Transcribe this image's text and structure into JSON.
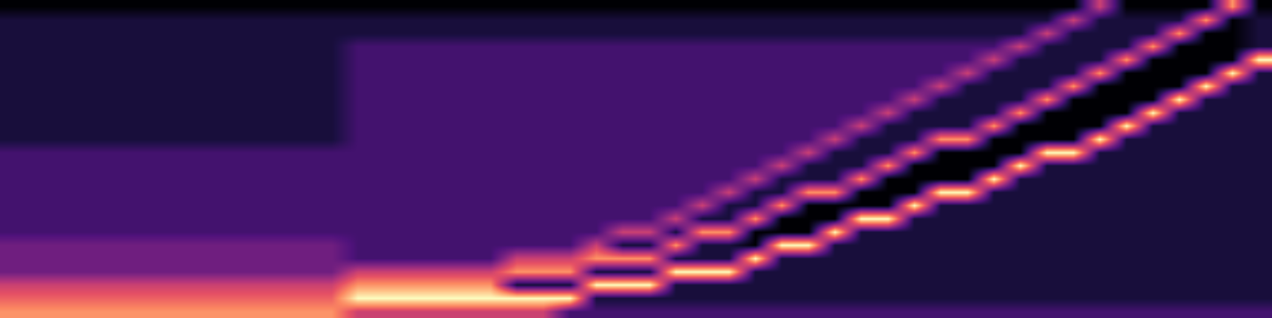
{
  "chart_data": {
    "type": "heatmap",
    "tick_labels": false,
    "grid": false,
    "cells": [
      [
        8,
        8,
        8,
        8,
        8,
        8,
        8,
        8,
        8,
        8,
        8,
        8,
        8,
        6,
        6,
        6,
        6,
        6,
        6,
        6,
        6,
        3,
        3,
        3,
        3,
        3,
        3,
        3,
        3,
        3,
        3,
        3,
        3,
        3,
        3,
        3,
        3,
        3,
        3,
        3,
        3,
        3,
        3,
        3,
        3,
        3,
        3,
        3
      ],
      [
        7,
        7,
        7,
        7,
        7,
        7,
        7,
        7,
        7,
        7,
        7,
        7,
        7,
        10,
        10,
        10,
        10,
        10,
        10,
        10,
        10,
        10,
        2,
        2,
        2,
        2,
        2,
        2,
        2,
        2,
        2,
        2,
        2,
        2,
        2,
        2,
        2,
        2,
        2,
        2,
        2,
        2,
        2,
        2,
        2,
        2,
        2,
        2
      ],
      [
        6,
        6,
        6,
        6,
        6,
        6,
        6,
        6,
        6,
        6,
        6,
        6,
        6,
        8,
        8,
        8,
        8,
        8,
        8,
        2,
        2,
        2,
        10,
        10,
        10,
        2,
        2,
        2,
        2,
        2,
        2,
        2,
        2,
        2,
        2,
        2,
        2,
        2,
        2,
        2,
        2,
        2,
        2,
        2,
        2,
        2,
        2,
        2
      ],
      [
        4,
        4,
        4,
        4,
        4,
        4,
        4,
        4,
        4,
        4,
        4,
        4,
        4,
        6,
        6,
        6,
        6,
        6,
        6,
        8,
        8,
        8,
        2,
        2,
        2,
        10,
        10,
        10,
        2,
        2,
        2,
        2,
        2,
        2,
        2,
        2,
        2,
        2,
        2,
        2,
        2,
        2,
        2,
        2,
        2,
        2,
        2,
        2
      ],
      [
        4,
        4,
        4,
        4,
        4,
        4,
        4,
        4,
        4,
        4,
        4,
        4,
        4,
        3,
        3,
        3,
        3,
        3,
        3,
        6,
        6,
        6,
        8,
        8,
        8,
        2,
        2,
        2,
        10,
        2,
        2,
        2,
        2,
        2,
        2,
        2,
        2,
        2,
        2,
        2,
        2,
        2,
        2,
        2,
        2,
        2,
        2,
        2
      ],
      [
        4,
        4,
        4,
        4,
        4,
        4,
        4,
        4,
        4,
        4,
        4,
        4,
        4,
        3,
        3,
        3,
        3,
        3,
        3,
        3,
        3,
        3,
        6,
        2,
        2,
        8,
        2,
        2,
        1,
        10,
        10,
        2,
        2,
        2,
        2,
        2,
        2,
        2,
        2,
        2,
        2,
        2,
        2,
        2,
        2,
        2,
        2,
        2
      ],
      [
        3,
        3,
        3,
        3,
        3,
        3,
        3,
        3,
        3,
        3,
        3,
        3,
        3,
        3,
        3,
        3,
        3,
        3,
        3,
        3,
        3,
        3,
        3,
        6,
        6,
        2,
        8,
        8,
        1,
        1,
        1,
        10,
        2,
        2,
        2,
        2,
        2,
        2,
        2,
        2,
        2,
        2,
        2,
        2,
        2,
        2,
        2,
        2
      ],
      [
        3,
        3,
        3,
        3,
        3,
        3,
        3,
        3,
        3,
        3,
        3,
        3,
        3,
        3,
        3,
        3,
        3,
        3,
        3,
        3,
        3,
        3,
        3,
        3,
        3,
        6,
        2,
        2,
        8,
        1,
        1,
        1,
        10,
        10,
        2,
        2,
        2,
        2,
        2,
        2,
        2,
        2,
        2,
        2,
        2,
        2,
        2,
        2
      ],
      [
        3,
        3,
        3,
        3,
        3,
        3,
        3,
        3,
        3,
        3,
        3,
        3,
        3,
        3,
        3,
        3,
        3,
        3,
        3,
        3,
        3,
        3,
        3,
        3,
        3,
        3,
        6,
        2,
        2,
        8,
        1,
        1,
        1,
        1,
        10,
        2,
        2,
        2,
        2,
        2,
        2,
        2,
        2,
        2,
        2,
        2,
        2,
        2
      ],
      [
        3,
        3,
        3,
        3,
        3,
        3,
        3,
        3,
        3,
        3,
        3,
        3,
        3,
        3,
        3,
        3,
        3,
        3,
        3,
        3,
        3,
        3,
        3,
        3,
        3,
        3,
        3,
        6,
        2,
        2,
        8,
        8,
        1,
        1,
        1,
        10,
        10,
        2,
        2,
        2,
        2,
        2,
        2,
        2,
        2,
        2,
        2,
        2
      ],
      [
        3,
        3,
        3,
        3,
        3,
        3,
        3,
        3,
        3,
        3,
        3,
        3,
        3,
        3,
        3,
        3,
        3,
        3,
        3,
        3,
        3,
        3,
        3,
        3,
        3,
        3,
        3,
        3,
        6,
        2,
        2,
        2,
        8,
        1,
        1,
        1,
        1,
        10,
        2,
        2,
        2,
        2,
        2,
        2,
        2,
        2,
        2,
        2
      ],
      [
        3,
        3,
        3,
        3,
        3,
        3,
        3,
        3,
        3,
        3,
        3,
        3,
        3,
        3,
        3,
        3,
        3,
        3,
        3,
        3,
        3,
        3,
        3,
        3,
        3,
        3,
        3,
        3,
        3,
        6,
        2,
        2,
        2,
        8,
        1,
        1,
        1,
        1,
        10,
        2,
        2,
        2,
        2,
        2,
        2,
        2,
        2,
        2
      ],
      [
        3,
        3,
        3,
        3,
        3,
        3,
        3,
        3,
        3,
        3,
        3,
        3,
        3,
        3,
        3,
        3,
        3,
        3,
        3,
        3,
        3,
        3,
        3,
        3,
        3,
        3,
        3,
        3,
        3,
        3,
        6,
        2,
        2,
        2,
        8,
        1,
        1,
        1,
        1,
        10,
        10,
        2,
        2,
        2,
        2,
        2,
        2,
        2
      ],
      [
        2,
        2,
        2,
        2,
        2,
        2,
        2,
        2,
        2,
        2,
        2,
        2,
        2,
        3,
        3,
        3,
        3,
        3,
        3,
        3,
        3,
        3,
        3,
        3,
        3,
        3,
        3,
        3,
        3,
        3,
        3,
        6,
        2,
        2,
        2,
        8,
        8,
        1,
        1,
        1,
        1,
        10,
        2,
        2,
        2,
        2,
        2,
        2
      ],
      [
        2,
        2,
        2,
        2,
        2,
        2,
        2,
        2,
        2,
        2,
        2,
        2,
        2,
        3,
        3,
        3,
        3,
        3,
        3,
        3,
        3,
        3,
        3,
        3,
        3,
        3,
        3,
        3,
        3,
        3,
        3,
        3,
        6,
        2,
        2,
        2,
        2,
        8,
        1,
        1,
        1,
        1,
        10,
        2,
        2,
        2,
        2,
        2
      ],
      [
        2,
        2,
        2,
        2,
        2,
        2,
        2,
        2,
        2,
        2,
        2,
        2,
        2,
        3,
        3,
        3,
        3,
        3,
        3,
        3,
        3,
        3,
        3,
        3,
        3,
        3,
        3,
        3,
        3,
        3,
        3,
        3,
        3,
        6,
        2,
        2,
        2,
        2,
        8,
        1,
        1,
        1,
        1,
        10,
        2,
        2,
        2,
        2
      ],
      [
        2,
        2,
        2,
        2,
        2,
        2,
        2,
        2,
        2,
        2,
        2,
        2,
        2,
        3,
        3,
        3,
        3,
        3,
        3,
        3,
        3,
        3,
        3,
        3,
        3,
        3,
        3,
        3,
        3,
        3,
        3,
        3,
        3,
        3,
        6,
        2,
        2,
        2,
        2,
        8,
        1,
        1,
        1,
        1,
        10,
        2,
        2,
        2
      ],
      [
        2,
        2,
        2,
        2,
        2,
        2,
        2,
        2,
        2,
        2,
        2,
        2,
        2,
        3,
        3,
        3,
        3,
        3,
        3,
        3,
        3,
        3,
        3,
        3,
        3,
        3,
        3,
        3,
        3,
        3,
        3,
        3,
        3,
        3,
        3,
        6,
        2,
        2,
        2,
        2,
        8,
        1,
        1,
        1,
        1,
        10,
        2,
        2
      ],
      [
        2,
        2,
        2,
        2,
        2,
        2,
        2,
        2,
        2,
        2,
        2,
        2,
        2,
        3,
        3,
        3,
        3,
        3,
        3,
        3,
        3,
        3,
        3,
        3,
        3,
        3,
        3,
        3,
        3,
        3,
        3,
        3,
        3,
        3,
        3,
        3,
        6,
        2,
        2,
        2,
        2,
        8,
        1,
        1,
        1,
        1,
        10,
        2
      ],
      [
        2,
        2,
        2,
        2,
        2,
        2,
        2,
        2,
        2,
        2,
        2,
        2,
        2,
        3,
        3,
        3,
        3,
        3,
        3,
        3,
        3,
        3,
        3,
        3,
        3,
        3,
        3,
        3,
        3,
        3,
        3,
        3,
        3,
        3,
        3,
        3,
        3,
        6,
        2,
        2,
        2,
        2,
        8,
        1,
        1,
        1,
        1,
        10
      ],
      [
        2,
        2,
        2,
        2,
        2,
        2,
        2,
        2,
        2,
        2,
        2,
        2,
        2,
        3,
        3,
        3,
        3,
        3,
        3,
        3,
        3,
        3,
        3,
        3,
        3,
        3,
        3,
        3,
        3,
        3,
        3,
        3,
        3,
        3,
        3,
        3,
        3,
        3,
        6,
        2,
        2,
        2,
        2,
        8,
        1,
        1,
        1,
        2
      ],
      [
        2,
        2,
        2,
        2,
        2,
        2,
        2,
        2,
        2,
        2,
        2,
        2,
        2,
        2,
        2,
        2,
        2,
        2,
        2,
        2,
        2,
        2,
        2,
        2,
        2,
        2,
        2,
        2,
        2,
        2,
        2,
        2,
        2,
        2,
        2,
        2,
        2,
        2,
        2,
        6,
        2,
        2,
        2,
        2,
        8,
        1,
        1,
        2
      ],
      [
        2,
        2,
        2,
        2,
        2,
        2,
        2,
        2,
        2,
        2,
        2,
        2,
        2,
        2,
        2,
        2,
        2,
        2,
        2,
        2,
        2,
        2,
        2,
        2,
        2,
        2,
        2,
        2,
        2,
        2,
        2,
        2,
        2,
        2,
        2,
        2,
        2,
        2,
        2,
        2,
        6,
        2,
        2,
        2,
        2,
        8,
        1,
        2
      ],
      [
        1,
        1,
        1,
        1,
        1,
        1,
        1,
        1,
        1,
        1,
        1,
        1,
        1,
        1,
        1,
        1,
        1,
        1,
        1,
        1,
        1,
        1,
        1,
        1,
        1,
        1,
        1,
        1,
        1,
        1,
        1,
        1,
        1,
        1,
        1,
        1,
        1,
        1,
        1,
        1,
        1,
        6,
        1,
        1,
        1,
        1,
        8,
        1
      ]
    ]
  }
}
